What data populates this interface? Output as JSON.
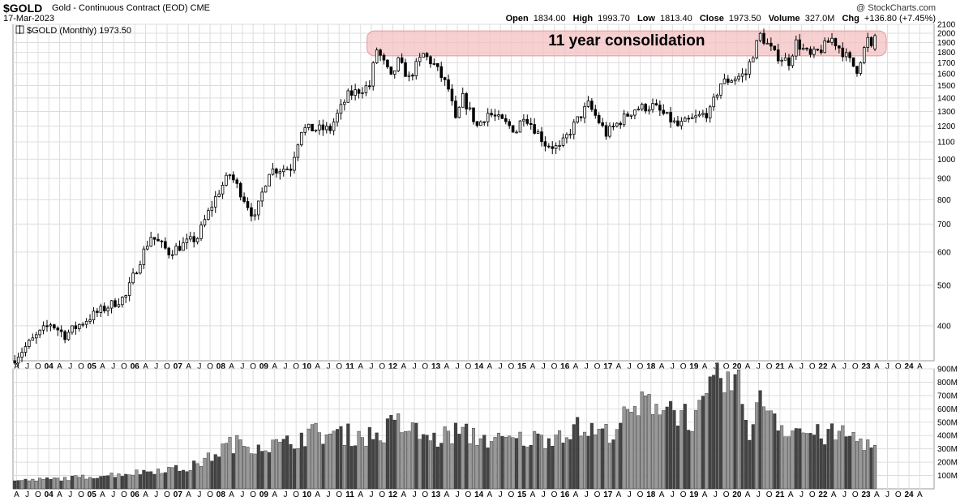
{
  "header": {
    "symbol": "$GOLD",
    "description": "Gold - Continuous Contract (EOD)",
    "exchange": "CME",
    "date": "17-Mar-2023",
    "watermark": "@ StockCharts.com",
    "open_label": "Open",
    "open": "1834.00",
    "high_label": "High",
    "high": "1993.70",
    "low_label": "Low",
    "low": "1813.40",
    "close_label": "Close",
    "close": "1973.50",
    "volume_label": "Volume",
    "volume": "327.0M",
    "chg_label": "Chg",
    "chg": "+136.80 (+7.45%)"
  },
  "legend": {
    "text": "$GOLD (Monthly) 1973.50"
  },
  "annotation": {
    "text": "11 year consolidation",
    "from": "2011-08",
    "to": "2023-03",
    "low": 1750,
    "high": 1990
  },
  "colors": {
    "up": "#ffffff",
    "down": "#000000",
    "grid": "#dddddd",
    "band": "#f4c2c2",
    "band_stroke": "#e39a9a",
    "vol_dark": "#444444",
    "vol_light": "#999999"
  },
  "chart_data": [
    {
      "type": "candlestick",
      "title": "$GOLD (Monthly)",
      "scale": "log",
      "ylim": [
        330,
        2100
      ],
      "y_ticks": [
        400,
        500,
        600,
        700,
        800,
        900,
        1000,
        1100,
        1200,
        1300,
        1400,
        1500,
        1600,
        1700,
        1800,
        1900,
        2000,
        2100
      ],
      "x_start": "2003-03",
      "x_end": "2024-08",
      "x_tick_labels": [
        "A",
        "J",
        "O",
        "04",
        "A",
        "J",
        "O",
        "05",
        "A",
        "J",
        "O",
        "06",
        "A",
        "J",
        "O",
        "07",
        "A",
        "J",
        "O",
        "08",
        "A",
        "J",
        "O",
        "09",
        "A",
        "J",
        "O",
        "10",
        "A",
        "J",
        "O",
        "11",
        "A",
        "J",
        "O",
        "12",
        "A",
        "J",
        "O",
        "13",
        "A",
        "J",
        "O",
        "14",
        "A",
        "J",
        "O",
        "15",
        "A",
        "J",
        "O",
        "16",
        "A",
        "J",
        "O",
        "17",
        "A",
        "J",
        "O",
        "18",
        "A",
        "J",
        "O",
        "19",
        "A",
        "J",
        "O",
        "20",
        "A",
        "J",
        "O",
        "21",
        "A",
        "J",
        "O",
        "22",
        "A",
        "J",
        "O",
        "23",
        "A",
        "J",
        "O",
        "24",
        "A"
      ],
      "close_anchors": [
        [
          "2003-03",
          335
        ],
        [
          "2004-01",
          405
        ],
        [
          "2004-05",
          380
        ],
        [
          "2005-01",
          425
        ],
        [
          "2005-10",
          470
        ],
        [
          "2006-05",
          655
        ],
        [
          "2006-10",
          600
        ],
        [
          "2007-06",
          650
        ],
        [
          "2007-12",
          840
        ],
        [
          "2008-03",
          920
        ],
        [
          "2008-10",
          720
        ],
        [
          "2009-02",
          940
        ],
        [
          "2009-08",
          955
        ],
        [
          "2009-11",
          1180
        ],
        [
          "2010-07",
          1180
        ],
        [
          "2010-12",
          1420
        ],
        [
          "2011-06",
          1500
        ],
        [
          "2011-08",
          1830
        ],
        [
          "2011-12",
          1560
        ],
        [
          "2012-02",
          1710
        ],
        [
          "2012-05",
          1560
        ],
        [
          "2012-09",
          1780
        ],
        [
          "2012-12",
          1680
        ],
        [
          "2013-04",
          1470
        ],
        [
          "2013-06",
          1230
        ],
        [
          "2013-08",
          1400
        ],
        [
          "2013-12",
          1200
        ],
        [
          "2014-03",
          1290
        ],
        [
          "2014-11",
          1170
        ],
        [
          "2015-01",
          1280
        ],
        [
          "2015-07",
          1090
        ],
        [
          "2015-11",
          1060
        ],
        [
          "2016-07",
          1350
        ],
        [
          "2016-12",
          1150
        ],
        [
          "2017-08",
          1320
        ],
        [
          "2018-01",
          1340
        ],
        [
          "2018-08",
          1200
        ],
        [
          "2019-05",
          1300
        ],
        [
          "2019-08",
          1520
        ],
        [
          "2020-03",
          1600
        ],
        [
          "2020-07",
          1980
        ],
        [
          "2020-11",
          1780
        ],
        [
          "2021-03",
          1710
        ],
        [
          "2021-05",
          1900
        ],
        [
          "2021-09",
          1760
        ],
        [
          "2021-12",
          1830
        ],
        [
          "2022-03",
          1940
        ],
        [
          "2022-09",
          1670
        ],
        [
          "2022-10",
          1640
        ],
        [
          "2023-01",
          1930
        ],
        [
          "2023-02",
          1830
        ],
        [
          "2023-03",
          1973.5
        ]
      ],
      "last_bar": {
        "date": "2023-03",
        "open": 1834.0,
        "high": 1993.7,
        "low": 1813.4,
        "close": 1973.5
      }
    },
    {
      "type": "bar",
      "title": "Volume",
      "ylim": [
        0,
        900
      ],
      "y_ticks": [
        100,
        200,
        300,
        400,
        500,
        600,
        700,
        800,
        900
      ],
      "y_tick_labels": [
        "100M",
        "200M",
        "300M",
        "400M",
        "500M",
        "600M",
        "700M",
        "800M",
        "900M"
      ],
      "unit": "M",
      "volume_anchors": [
        [
          "2003-03",
          60
        ],
        [
          "2004-06",
          80
        ],
        [
          "2005-12",
          120
        ],
        [
          "2006-09",
          150
        ],
        [
          "2007-03",
          150
        ],
        [
          "2007-09",
          230
        ],
        [
          "2008-03",
          340
        ],
        [
          "2009-06",
          330
        ],
        [
          "2010-01",
          420
        ],
        [
          "2011-09",
          400
        ],
        [
          "2012-01",
          500
        ],
        [
          "2012-12",
          370
        ],
        [
          "2013-06",
          430
        ],
        [
          "2014-06",
          360
        ],
        [
          "2015-06",
          380
        ],
        [
          "2016-03",
          460
        ],
        [
          "2016-12",
          420
        ],
        [
          "2017-06",
          540
        ],
        [
          "2018-01",
          680
        ],
        [
          "2018-06",
          620
        ],
        [
          "2019-01",
          520
        ],
        [
          "2019-08",
          840
        ],
        [
          "2020-01",
          750
        ],
        [
          "2020-04",
          460
        ],
        [
          "2020-08",
          700
        ],
        [
          "2021-01",
          480
        ],
        [
          "2021-12",
          400
        ],
        [
          "2022-06",
          420
        ],
        [
          "2023-03",
          327
        ]
      ]
    }
  ]
}
